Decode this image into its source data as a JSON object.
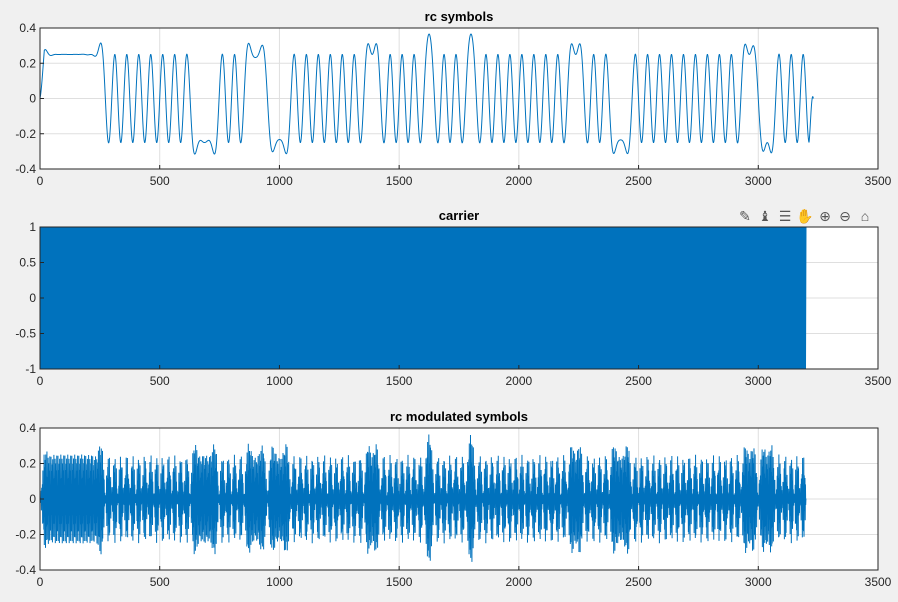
{
  "figure": {
    "background": "#f0f0f0",
    "axes_background": "#ffffff",
    "line_color": "#0072bd",
    "grid_color": "#dfdfdf"
  },
  "toolbar": {
    "icons": [
      "brush-icon",
      "data-cursor-icon",
      "legend-icon",
      "pan-hand-icon",
      "zoom-in-icon",
      "zoom-out-icon",
      "home-icon"
    ],
    "glyphs": [
      "✎",
      "♝",
      "☰",
      "✋",
      "⊕",
      "⊖",
      "⌂"
    ]
  },
  "chart_data": [
    {
      "type": "line",
      "title": "rc symbols",
      "xlabel": "",
      "ylabel": "",
      "xlim": [
        0,
        3500
      ],
      "ylim": [
        -0.4,
        0.4
      ],
      "xticks": [
        0,
        500,
        1000,
        1500,
        2000,
        2500,
        3000,
        3500
      ],
      "xtick_labels": [
        "0",
        "500",
        "1000",
        "1500",
        "2000",
        "2500",
        "3000",
        "3500"
      ],
      "yticks": [
        -0.4,
        -0.2,
        0,
        0.2,
        0.4
      ],
      "ytick_labels": [
        "-0.4",
        "-0.2",
        "0",
        "0.2",
        "0.4"
      ],
      "grid": true,
      "series": [
        {
          "x_end": 3230,
          "symbol_period": 25,
          "amplitude": 0.25,
          "symbols": [
            1,
            1,
            1,
            1,
            1,
            1,
            1,
            1,
            1,
            1,
            1,
            -1,
            1,
            -1,
            1,
            -1,
            1,
            -1,
            1,
            -1,
            1,
            -1,
            1,
            -1,
            1,
            -1,
            -1,
            -1,
            -1,
            -1,
            1,
            -1,
            1,
            -1,
            1,
            1,
            1,
            1,
            -1,
            -1,
            -1,
            -1,
            1,
            -1,
            1,
            -1,
            1,
            -1,
            1,
            -1,
            1,
            -1,
            1,
            -1,
            1,
            1,
            1,
            -1,
            1,
            -1,
            1,
            -1,
            1,
            -1,
            1,
            1,
            -1,
            1,
            -1,
            1,
            -1,
            1,
            1,
            -1,
            1,
            -1,
            1,
            -1,
            1,
            -1,
            1,
            -1,
            1,
            -1,
            1,
            -1,
            1,
            -1,
            1,
            1,
            1,
            -1,
            1,
            -1,
            1,
            -1,
            -1,
            -1,
            -1,
            1,
            -1,
            1,
            -1,
            1,
            -1,
            1,
            -1,
            1,
            -1,
            1,
            -1,
            1,
            -1,
            1,
            -1,
            1,
            -1,
            1,
            1,
            1,
            -1,
            -1,
            -1,
            1,
            -1,
            1,
            -1,
            1,
            -1,
            1,
            -1,
            1,
            -1,
            1,
            1,
            1,
            1,
            1,
            -1,
            1,
            -1,
            1,
            -1,
            1
          ]
        }
      ]
    },
    {
      "type": "line",
      "title": "carrier",
      "xlabel": "",
      "ylabel": "",
      "xlim": [
        0,
        3500
      ],
      "ylim": [
        -1,
        1
      ],
      "xticks": [
        0,
        500,
        1000,
        1500,
        2000,
        2500,
        3000,
        3500
      ],
      "xtick_labels": [
        "0",
        "500",
        "1000",
        "1500",
        "2000",
        "2500",
        "3000",
        "3500"
      ],
      "yticks": [
        -1,
        -0.5,
        0,
        0.5,
        1
      ],
      "ytick_labels": [
        "-1",
        "-0.5",
        "0",
        "0.5",
        "1"
      ],
      "grid": true,
      "series": [
        {
          "x_end": 3200,
          "amplitude": 1,
          "description_of_fill": "dense sinusoid"
        }
      ]
    },
    {
      "type": "line",
      "title": "rc modulated symbols",
      "xlabel": "",
      "ylabel": "",
      "xlim": [
        0,
        3500
      ],
      "ylim": [
        -0.4,
        0.4
      ],
      "xticks": [
        0,
        500,
        1000,
        1500,
        2000,
        2500,
        3000,
        3500
      ],
      "xtick_labels": [
        "0",
        "500",
        "1000",
        "1500",
        "2000",
        "2500",
        "3000",
        "3500"
      ],
      "yticks": [
        -0.4,
        -0.2,
        0,
        0.2,
        0.4
      ],
      "ytick_labels": [
        "-0.4",
        "-0.2",
        "0",
        "0.2",
        "0.4"
      ],
      "grid": true,
      "series": [
        {
          "x_end": 3200
        }
      ]
    }
  ]
}
